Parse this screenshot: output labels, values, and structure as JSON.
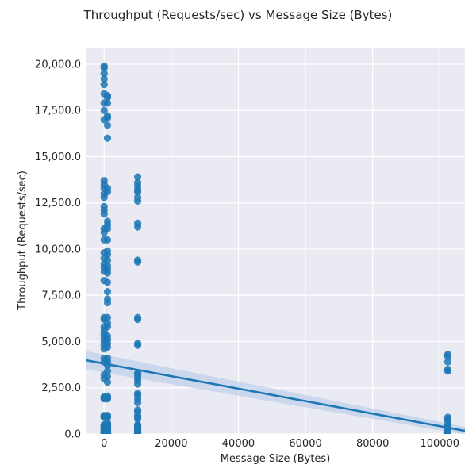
{
  "chart_data": {
    "type": "scatter",
    "title": "Throughput (Requests/sec) vs Message Size (Bytes)",
    "xlabel": "Message Size (Bytes)",
    "ylabel": "Throughput (Requests/sec)",
    "xlim": [
      -5500,
      107500
    ],
    "ylim": [
      0,
      20900
    ],
    "x_ticks": [
      0,
      20000,
      40000,
      60000,
      80000,
      100000
    ],
    "x_tick_labels": [
      "0",
      "20000",
      "40000",
      "60000",
      "80000",
      "100000"
    ],
    "y_ticks": [
      0,
      2500,
      5000,
      7500,
      10000,
      12500,
      15000,
      17500,
      20000
    ],
    "y_tick_labels": [
      "0.0",
      "2,500.0",
      "5,000.0",
      "7,500.0",
      "10,000.0",
      "12,500.0",
      "15,000.0",
      "17,500.0",
      "20,000.0"
    ],
    "grid": true,
    "colors": {
      "points": "#1f77b4",
      "regression_line": "#1f77b4",
      "confidence_band": "#aec7e8",
      "plot_background": "#eaeaf2"
    },
    "regression": {
      "x": [
        -5500,
        107500
      ],
      "y": [
        3990,
        170
      ],
      "ci_upper": [
        4490,
        380
      ],
      "ci_lower": [
        3490,
        -40
      ]
    },
    "series": [
      {
        "x": [
          0,
          0,
          0,
          0,
          0,
          0,
          0,
          0,
          0,
          0,
          0,
          0,
          0,
          0,
          0,
          0,
          0,
          0,
          0,
          0,
          0,
          0,
          0,
          0,
          0,
          0,
          0,
          0,
          0,
          0,
          0,
          0,
          0,
          0,
          0,
          0,
          0,
          0,
          0,
          0,
          0,
          0,
          0,
          0,
          0,
          0,
          0,
          0,
          0,
          0,
          0,
          0,
          0,
          0,
          0,
          0,
          0,
          0,
          0,
          0,
          0,
          0,
          0,
          0,
          0,
          1000,
          1000,
          1000,
          1000,
          1000,
          1000,
          1000,
          1000,
          1000,
          1000,
          1000,
          1000,
          1000,
          1000,
          1000,
          1000,
          1000,
          1000,
          1000,
          1000,
          1000,
          1000,
          1000,
          1000,
          1000,
          1000,
          1000,
          1000,
          1000,
          1000,
          1000,
          1000,
          1000,
          1000,
          1000,
          1000,
          1000,
          1000,
          1000,
          1000,
          1000,
          1000,
          1000,
          1000,
          1000,
          1000,
          1000,
          1000,
          1000,
          1000,
          1000,
          1000,
          1000,
          1000,
          1000,
          1000,
          1000,
          1000,
          1000,
          1000,
          10000,
          10000,
          10000,
          10000,
          10000,
          10000,
          10000,
          10000,
          10000,
          10000,
          10000,
          10000,
          10000,
          10000,
          10000,
          10000,
          10000,
          10000,
          10000,
          10000,
          10000,
          10000,
          10000,
          10000,
          10000,
          10000,
          10000,
          10000,
          10000,
          10000,
          10000,
          10000,
          10000,
          10000,
          10000,
          10000,
          10000,
          10000,
          10000,
          102400,
          102400,
          102400,
          102400,
          102400,
          102400,
          102400,
          102400,
          102400,
          102400,
          102400,
          102400,
          102400,
          102400,
          102400
        ],
        "y": [
          19900,
          19800,
          19500,
          19200,
          18900,
          18400,
          17900,
          17500,
          17000,
          13700,
          13500,
          13300,
          13000,
          12800,
          12300,
          12100,
          11900,
          11100,
          10900,
          10500,
          9800,
          9500,
          9200,
          9000,
          8800,
          8300,
          6300,
          6200,
          5800,
          5600,
          5400,
          5200,
          5000,
          4800,
          4600,
          4100,
          3900,
          3200,
          3000,
          2000,
          1950,
          1900,
          1000,
          950,
          900,
          500,
          450,
          400,
          350,
          300,
          250,
          200,
          150,
          100,
          80,
          60,
          40,
          30,
          20,
          15,
          10,
          8,
          5,
          3,
          1,
          18300,
          18200,
          17900,
          17200,
          17100,
          16700,
          16000,
          13300,
          13100,
          11500,
          11300,
          11100,
          10500,
          9900,
          9700,
          9400,
          9100,
          8900,
          8700,
          8200,
          7700,
          7300,
          7100,
          6300,
          6000,
          5800,
          5300,
          5100,
          4900,
          4700,
          4100,
          3900,
          3700,
          3400,
          3100,
          2800,
          2050,
          1950,
          1900,
          1000,
          950,
          900,
          600,
          500,
          450,
          400,
          350,
          300,
          250,
          200,
          150,
          100,
          80,
          60,
          40,
          30,
          20,
          15,
          10,
          5,
          13900,
          13600,
          13400,
          13200,
          13100,
          12800,
          12600,
          11400,
          11200,
          9400,
          9300,
          6300,
          6200,
          4900,
          4800,
          3300,
          3200,
          3050,
          2900,
          2700,
          2200,
          2100,
          1900,
          1700,
          1300,
          1200,
          1000,
          900,
          800,
          500,
          450,
          400,
          350,
          300,
          200,
          150,
          100,
          50,
          20,
          4300,
          4200,
          3900,
          3500,
          3400,
          900,
          800,
          700,
          500,
          400,
          300,
          200,
          100,
          50,
          20
        ]
      }
    ]
  }
}
